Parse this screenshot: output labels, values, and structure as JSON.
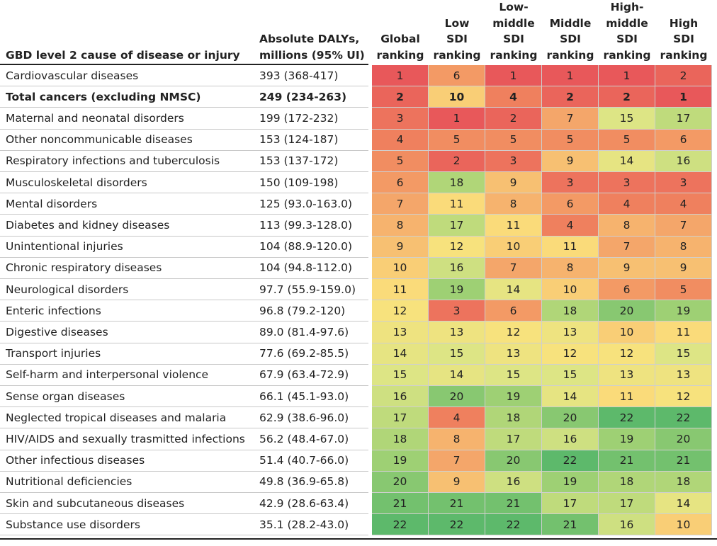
{
  "table": {
    "headers": [
      "GBD level 2 cause of disease or injury",
      "Absolute DALYs,\nmillions (95% UI)",
      "Global\nranking",
      "Low\nSDI\nranking",
      "Low-\nmiddle\nSDI\nranking",
      "Middle\nSDI\nranking",
      "High-\nmiddle\nSDI\nranking",
      "High\nSDI\nranking"
    ],
    "emphasized_rows": [
      1
    ],
    "color_scale": [
      "#e8585a",
      "#f0875f",
      "#f6b36e",
      "#fbe27c",
      "#dde585",
      "#a9d476",
      "#5db96b"
    ],
    "rows": [
      [
        "Cardiovascular diseases",
        "393 (368-417)",
        1,
        6,
        1,
        1,
        1,
        2
      ],
      [
        "Total cancers (excluding NMSC)",
        "249 (234-263)",
        2,
        10,
        4,
        2,
        2,
        1
      ],
      [
        "Maternal and neonatal disorders",
        "199 (172-232)",
        3,
        1,
        2,
        7,
        15,
        17
      ],
      [
        "Other noncommunicable diseases",
        "153 (124-187)",
        4,
        5,
        5,
        5,
        5,
        6
      ],
      [
        "Respiratory infections and tuberculosis",
        "153 (137-172)",
        5,
        2,
        3,
        9,
        14,
        16
      ],
      [
        "Musculoskeletal disorders",
        "150 (109-198)",
        6,
        18,
        9,
        3,
        3,
        3
      ],
      [
        "Mental disorders",
        "125 (93.0-163.0)",
        7,
        11,
        8,
        6,
        4,
        4
      ],
      [
        "Diabetes and kidney diseases",
        "113 (99.3-128.0)",
        8,
        17,
        11,
        4,
        8,
        7
      ],
      [
        "Unintentional injuries",
        "104 (88.9-120.0)",
        9,
        12,
        10,
        11,
        7,
        8
      ],
      [
        "Chronic respiratory diseases",
        "104 (94.8-112.0)",
        10,
        16,
        7,
        8,
        9,
        9
      ],
      [
        "Neurological disorders",
        "97.7 (55.9-159.0)",
        11,
        19,
        14,
        10,
        6,
        5
      ],
      [
        "Enteric infections",
        "96.8 (79.2-120)",
        12,
        3,
        6,
        18,
        20,
        19
      ],
      [
        "Digestive diseases",
        "89.0 (81.4-97.6)",
        13,
        13,
        12,
        13,
        10,
        11
      ],
      [
        "Transport injuries",
        "77.6 (69.2-85.5)",
        14,
        15,
        13,
        12,
        12,
        15
      ],
      [
        "Self-harm and interpersonal violence",
        "67.9 (63.4-72.9)",
        15,
        14,
        15,
        15,
        13,
        13
      ],
      [
        "Sense organ diseases",
        "66.1 (45.1-93.0)",
        16,
        20,
        19,
        14,
        11,
        12
      ],
      [
        "Neglected tropical diseases and malaria",
        "62.9 (38.6-96.0)",
        17,
        4,
        18,
        20,
        22,
        22
      ],
      [
        "HIV/AIDS and sexually trasmitted infections",
        "56.2 (48.4-67.0)",
        18,
        8,
        17,
        16,
        19,
        20
      ],
      [
        "Other infectious diseases",
        "51.4 (40.7-66.0)",
        19,
        7,
        20,
        22,
        21,
        21
      ],
      [
        "Nutritional deficiencies",
        "49.8 (36.9-65.8)",
        20,
        9,
        16,
        19,
        18,
        18
      ],
      [
        "Skin and subcutaneous diseases",
        "42.9 (28.6-63.4)",
        21,
        21,
        21,
        17,
        17,
        14
      ],
      [
        "Substance use disorders",
        "35.1 (28.2-43.0)",
        22,
        22,
        22,
        21,
        16,
        10
      ]
    ]
  }
}
